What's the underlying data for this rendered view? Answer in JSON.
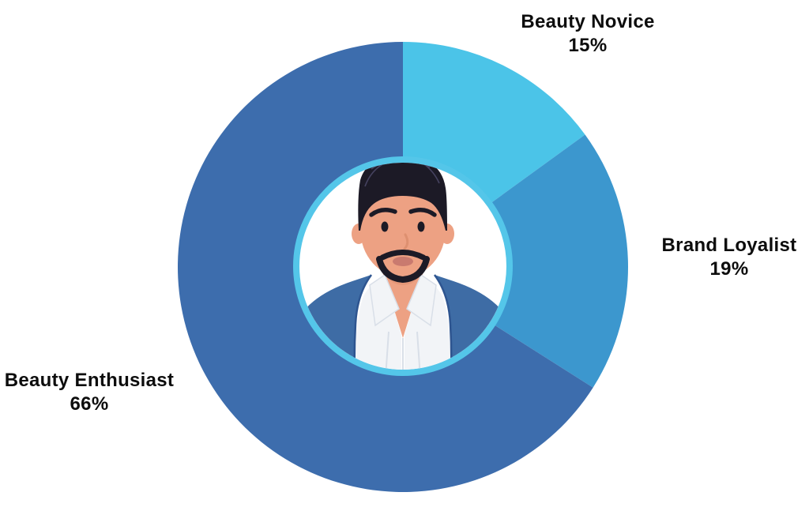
{
  "page": {
    "background": "#FFFFFF"
  },
  "chart_data": {
    "type": "pie",
    "subtype": "donut",
    "title": "",
    "categories": [
      "Beauty Novice",
      "Brand Loyalist",
      "Beauty Enthusiast"
    ],
    "values": [
      15,
      19,
      66
    ],
    "unit": "%",
    "start_angle_deg": 0,
    "direction": "clockwise",
    "legend": "none",
    "labels_position": "outside",
    "segments": [
      {
        "label": "Beauty Novice",
        "value": 15,
        "value_label": "15%",
        "color": "#4BC4E8"
      },
      {
        "label": "Brand Loyalist",
        "value": 19,
        "value_label": "19%",
        "color": "#3C97CE"
      },
      {
        "label": "Beauty Enthusiast",
        "value": 66,
        "value_label": "66%",
        "color": "#3D6DAD"
      }
    ],
    "donut_hole": {
      "fill": "#FFFFFF",
      "ring_color": "#54C6E9"
    },
    "center_graphic": "male-avatar-illustration"
  },
  "avatar": {
    "name": "male-avatar-illustration",
    "colors": {
      "skin": "#EDA183",
      "skin_shadow": "#DE9070",
      "hair": "#1C1A26",
      "hair_strand": "#45425F",
      "shirt": "#F2F4F7",
      "shirt_fold": "#D9DFE8",
      "jacket": "#3E6CA5",
      "jacket_line": "#2E5590",
      "lips": "#C97A6F"
    }
  }
}
